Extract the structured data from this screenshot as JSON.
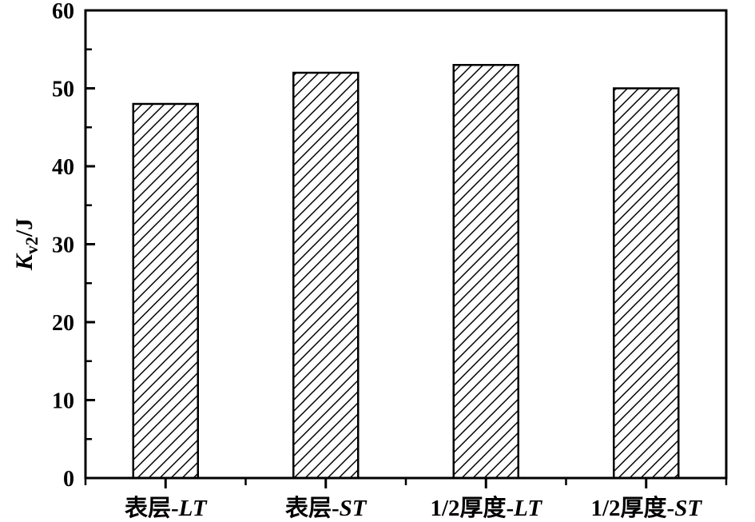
{
  "chart_data": {
    "type": "bar",
    "title": "",
    "xlabel": "",
    "ylabel": "Kv2/J",
    "ylabel_parts": {
      "symbol": "K",
      "subscript": "v2",
      "suffix": "/J"
    },
    "categories": [
      "表层-LT",
      "表层-ST",
      "1/2厚度-LT",
      "1/2厚度-ST"
    ],
    "category_parts": [
      {
        "prefix": "表层-",
        "italic": "LT"
      },
      {
        "prefix": "表层-",
        "italic": "ST"
      },
      {
        "prefix": "1/2厚度-",
        "italic": "LT"
      },
      {
        "prefix": "1/2厚度-",
        "italic": "ST"
      }
    ],
    "values": [
      48,
      52,
      53,
      50
    ],
    "ylim": [
      0,
      60
    ],
    "ytick_interval": 10,
    "yminor_interval": 5,
    "ytick_labels": [
      "0",
      "10",
      "20",
      "30",
      "40",
      "50",
      "60"
    ],
    "grid": false,
    "legend": null,
    "bar_fill": "#ffffff",
    "hatch_style": "forward-diagonal",
    "axis_color": "#000000",
    "background_color": "#ffffff"
  }
}
